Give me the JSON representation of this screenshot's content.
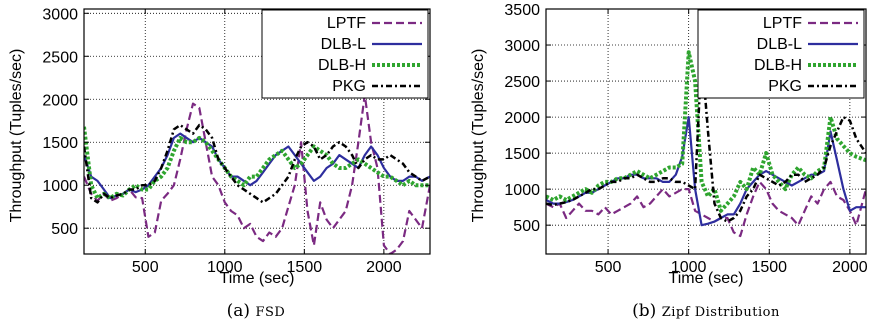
{
  "chart_data": [
    {
      "type": "line",
      "xlabel": "Time (sec)",
      "ylabel": "Throughput (Tuples/sec)",
      "xlim": [
        115,
        2290
      ],
      "ylim": [
        200,
        3050
      ],
      "xticks": [
        500,
        1000,
        1500,
        2000
      ],
      "yticks": [
        500,
        1000,
        1500,
        2000,
        2500,
        3000
      ],
      "grid": true,
      "legend": "top-right",
      "caption_label": "(a)",
      "caption_text": "FSD",
      "series": [
        {
          "name": "LPTF",
          "color": "#7b2a82",
          "dash": "8,4",
          "width": 2.2,
          "x": [
            115,
            160,
            200,
            240,
            280,
            320,
            360,
            400,
            440,
            480,
            520,
            560,
            600,
            640,
            680,
            720,
            760,
            800,
            840,
            880,
            920,
            960,
            1000,
            1040,
            1080,
            1120,
            1160,
            1200,
            1240,
            1280,
            1320,
            1360,
            1400,
            1440,
            1480,
            1520,
            1560,
            1600,
            1640,
            1680,
            1720,
            1760,
            1800,
            1840,
            1880,
            1920,
            1960,
            2000,
            2040,
            2080,
            2120,
            2160,
            2200,
            2240,
            2290
          ],
          "y": [
            1100,
            900,
            820,
            900,
            820,
            850,
            900,
            950,
            860,
            850,
            400,
            450,
            820,
            900,
            1000,
            1300,
            1650,
            1950,
            1900,
            1500,
            1100,
            1000,
            800,
            700,
            650,
            500,
            550,
            400,
            350,
            450,
            400,
            500,
            750,
            1000,
            1500,
            700,
            300,
            800,
            600,
            500,
            600,
            700,
            1000,
            1500,
            2050,
            1500,
            1200,
            300,
            200,
            250,
            350,
            700,
            600,
            500,
            1000
          ]
        },
        {
          "name": "DLB-L",
          "color": "#2e2e9e",
          "dash": "",
          "width": 2.2,
          "x": [
            115,
            160,
            200,
            240,
            280,
            320,
            360,
            400,
            440,
            480,
            520,
            560,
            600,
            640,
            680,
            720,
            760,
            800,
            840,
            880,
            920,
            960,
            1000,
            1040,
            1080,
            1120,
            1160,
            1200,
            1240,
            1280,
            1320,
            1360,
            1400,
            1440,
            1480,
            1520,
            1560,
            1600,
            1640,
            1680,
            1720,
            1760,
            1800,
            1840,
            1880,
            1920,
            1960,
            2000,
            2040,
            2080,
            2120,
            2160,
            2200,
            2240,
            2290
          ],
          "y": [
            1350,
            1100,
            1050,
            950,
            850,
            880,
            900,
            950,
            920,
            950,
            1000,
            1100,
            1200,
            1350,
            1550,
            1600,
            1550,
            1500,
            1550,
            1500,
            1450,
            1300,
            1200,
            1100,
            1100,
            1050,
            1000,
            1050,
            1150,
            1250,
            1350,
            1400,
            1450,
            1350,
            1250,
            1150,
            1050,
            1100,
            1200,
            1250,
            1350,
            1300,
            1250,
            1200,
            1350,
            1450,
            1350,
            1200,
            1100,
            1050,
            1050,
            1100,
            1100,
            1050,
            1100
          ]
        },
        {
          "name": "DLB-H",
          "color": "#2fa52f",
          "dash": "3,2",
          "width": 4,
          "x": [
            115,
            160,
            200,
            240,
            280,
            320,
            360,
            400,
            440,
            480,
            520,
            560,
            600,
            640,
            680,
            720,
            760,
            800,
            840,
            880,
            920,
            960,
            1000,
            1040,
            1080,
            1120,
            1160,
            1200,
            1240,
            1280,
            1320,
            1360,
            1400,
            1440,
            1480,
            1520,
            1560,
            1600,
            1640,
            1680,
            1720,
            1760,
            1800,
            1840,
            1880,
            1920,
            1960,
            2000,
            2040,
            2080,
            2120,
            2160,
            2200,
            2240,
            2290
          ],
          "y": [
            1680,
            1000,
            850,
            900,
            850,
            900,
            880,
            950,
            1000,
            950,
            950,
            1050,
            1100,
            1200,
            1400,
            1550,
            1500,
            1500,
            1550,
            1500,
            1400,
            1300,
            1200,
            1100,
            1050,
            1000,
            1100,
            1100,
            1200,
            1300,
            1350,
            1400,
            1300,
            1200,
            1250,
            1350,
            1450,
            1400,
            1350,
            1250,
            1200,
            1200,
            1250,
            1300,
            1250,
            1200,
            1150,
            1100,
            1100,
            1050,
            1000,
            1050,
            1000,
            1000,
            1000
          ]
        },
        {
          "name": "PKG",
          "color": "#000000",
          "dash": "6,3,2,3",
          "width": 2.5,
          "x": [
            115,
            160,
            200,
            240,
            280,
            320,
            360,
            400,
            440,
            480,
            520,
            560,
            600,
            640,
            680,
            720,
            760,
            800,
            840,
            880,
            920,
            960,
            1000,
            1040,
            1080,
            1120,
            1160,
            1200,
            1240,
            1280,
            1320,
            1360,
            1400,
            1440,
            1480,
            1520,
            1560,
            1600,
            1640,
            1680,
            1720,
            1760,
            1800,
            1840,
            1880,
            1920,
            1960,
            2000,
            2040,
            2080,
            2120,
            2160,
            2200,
            2240,
            2290
          ],
          "y": [
            1450,
            850,
            800,
            900,
            850,
            880,
            900,
            950,
            950,
            1000,
            1000,
            1050,
            1200,
            1400,
            1650,
            1700,
            1650,
            1600,
            1700,
            1650,
            1550,
            1300,
            1200,
            1100,
            1000,
            950,
            900,
            850,
            800,
            850,
            900,
            1000,
            1100,
            1300,
            1450,
            1500,
            1450,
            1300,
            1350,
            1450,
            1500,
            1450,
            1350,
            1200,
            1300,
            1350,
            1300,
            1300,
            1350,
            1300,
            1250,
            1150,
            1100,
            1050,
            1100
          ]
        }
      ]
    },
    {
      "type": "line",
      "xlabel": "Time (sec)",
      "ylabel": "Throughput (Tuples/sec)",
      "xlim": [
        115,
        2100
      ],
      "ylim": [
        100,
        3500
      ],
      "xticks": [
        500,
        1000,
        1500,
        2000
      ],
      "yticks": [
        500,
        1000,
        1500,
        2000,
        2500,
        3000,
        3500
      ],
      "grid": true,
      "legend": "top-right",
      "caption_label": "(b)",
      "caption_text": "Zipf Distribution",
      "series": [
        {
          "name": "LPTF",
          "color": "#7b2a82",
          "dash": "8,4",
          "width": 2.2,
          "x": [
            115,
            160,
            200,
            240,
            280,
            320,
            360,
            400,
            440,
            480,
            520,
            560,
            600,
            640,
            680,
            720,
            760,
            800,
            840,
            880,
            920,
            960,
            1000,
            1040,
            1080,
            1120,
            1160,
            1200,
            1240,
            1280,
            1320,
            1360,
            1400,
            1440,
            1480,
            1520,
            1560,
            1600,
            1640,
            1680,
            1720,
            1760,
            1800,
            1840,
            1880,
            1920,
            1960,
            2000,
            2040,
            2100
          ],
          "y": [
            800,
            750,
            800,
            600,
            700,
            800,
            700,
            700,
            650,
            750,
            650,
            700,
            750,
            800,
            900,
            750,
            800,
            900,
            1000,
            900,
            950,
            1000,
            1000,
            700,
            650,
            600,
            550,
            600,
            600,
            400,
            350,
            650,
            900,
            1100,
            1000,
            800,
            700,
            650,
            600,
            500,
            700,
            900,
            800,
            1000,
            1100,
            900,
            850,
            700,
            500,
            1000
          ]
        },
        {
          "name": "DLB-L",
          "color": "#2e2e9e",
          "dash": "",
          "width": 2.2,
          "x": [
            115,
            160,
            200,
            240,
            280,
            320,
            360,
            400,
            440,
            480,
            520,
            560,
            600,
            640,
            680,
            720,
            760,
            800,
            840,
            880,
            920,
            960,
            1000,
            1040,
            1080,
            1120,
            1160,
            1200,
            1240,
            1280,
            1320,
            1360,
            1400,
            1440,
            1480,
            1520,
            1560,
            1600,
            1640,
            1680,
            1720,
            1760,
            1800,
            1840,
            1880,
            1920,
            1960,
            2000,
            2040,
            2100
          ],
          "y": [
            850,
            800,
            800,
            820,
            850,
            900,
            950,
            950,
            1000,
            1050,
            1100,
            1150,
            1150,
            1200,
            1200,
            1150,
            1150,
            1150,
            1100,
            1100,
            1200,
            1450,
            2000,
            1000,
            500,
            520,
            550,
            600,
            650,
            650,
            800,
            1000,
            1100,
            1200,
            1250,
            1200,
            1150,
            1100,
            1050,
            1100,
            1150,
            1200,
            1200,
            1250,
            1800,
            1400,
            1000,
            700,
            750,
            750
          ]
        },
        {
          "name": "DLB-H",
          "color": "#2fa52f",
          "dash": "3,2",
          "width": 4,
          "x": [
            115,
            160,
            200,
            240,
            280,
            320,
            360,
            400,
            440,
            480,
            520,
            560,
            600,
            640,
            680,
            720,
            760,
            800,
            840,
            880,
            920,
            960,
            1000,
            1040,
            1080,
            1120,
            1160,
            1200,
            1240,
            1280,
            1320,
            1360,
            1400,
            1440,
            1480,
            1520,
            1560,
            1600,
            1640,
            1680,
            1720,
            1760,
            1800,
            1840,
            1880,
            1920,
            1960,
            2000,
            2040,
            2100
          ],
          "y": [
            900,
            850,
            900,
            850,
            900,
            950,
            1000,
            950,
            1050,
            1100,
            1100,
            1150,
            1150,
            1200,
            1250,
            1200,
            1150,
            1200,
            1250,
            1300,
            1300,
            1350,
            2900,
            2500,
            1100,
            900,
            1000,
            700,
            800,
            900,
            1100,
            1000,
            1300,
            1200,
            1500,
            1200,
            1100,
            1000,
            1200,
            1300,
            1200,
            1150,
            1250,
            1300,
            2000,
            1700,
            1600,
            1500,
            1450,
            1400
          ]
        },
        {
          "name": "PKG",
          "color": "#000000",
          "dash": "6,3,2,3",
          "width": 2.5,
          "x": [
            115,
            160,
            200,
            240,
            280,
            320,
            360,
            400,
            440,
            480,
            520,
            560,
            600,
            640,
            680,
            720,
            760,
            800,
            840,
            880,
            920,
            960,
            1000,
            1040,
            1080,
            1120,
            1160,
            1200,
            1240,
            1280,
            1320,
            1360,
            1400,
            1440,
            1480,
            1520,
            1560,
            1600,
            1640,
            1680,
            1720,
            1760,
            1800,
            1840,
            1880,
            1920,
            1960,
            2000,
            2040,
            2100
          ],
          "y": [
            800,
            780,
            800,
            820,
            850,
            900,
            950,
            1000,
            1000,
            1050,
            1100,
            1100,
            1150,
            1150,
            1200,
            1150,
            1100,
            1100,
            1150,
            1150,
            1100,
            1100,
            1050,
            1000,
            2900,
            1800,
            800,
            600,
            550,
            600,
            700,
            900,
            1000,
            1200,
            1150,
            1100,
            1050,
            1100,
            1200,
            1200,
            1100,
            1150,
            1200,
            1300,
            1600,
            1800,
            2000,
            1950,
            1700,
            1500
          ]
        }
      ]
    }
  ]
}
